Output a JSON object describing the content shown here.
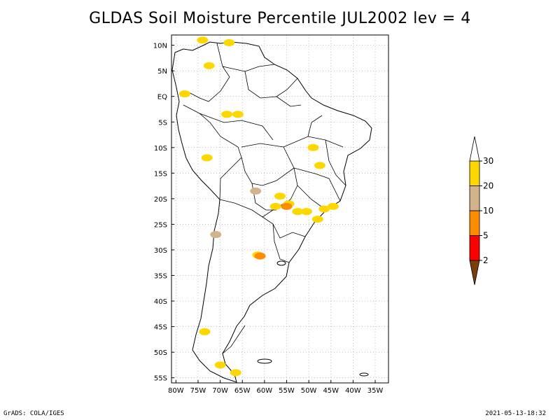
{
  "title": "GLDAS Soil Moisture Percentile JUL2002 lev = 4",
  "footer": {
    "left": "GrADS: COLA/IGES",
    "right": "2021-05-13-18:32"
  },
  "map": {
    "lon_range": [
      -81,
      -32
    ],
    "lat_range": [
      -56,
      12
    ],
    "lon_ticks": [
      {
        "value": -80,
        "label": "80W"
      },
      {
        "value": -75,
        "label": "75W"
      },
      {
        "value": -70,
        "label": "70W"
      },
      {
        "value": -65,
        "label": "65W"
      },
      {
        "value": -60,
        "label": "60W"
      },
      {
        "value": -55,
        "label": "55W"
      },
      {
        "value": -50,
        "label": "50W"
      },
      {
        "value": -45,
        "label": "45W"
      },
      {
        "value": -40,
        "label": "40W"
      },
      {
        "value": -35,
        "label": "35W"
      }
    ],
    "lat_ticks": [
      {
        "value": 10,
        "label": "10N"
      },
      {
        "value": 5,
        "label": "5N"
      },
      {
        "value": 0,
        "label": "EQ"
      },
      {
        "value": -5,
        "label": "5S"
      },
      {
        "value": -10,
        "label": "10S"
      },
      {
        "value": -15,
        "label": "15S"
      },
      {
        "value": -20,
        "label": "20S"
      },
      {
        "value": -25,
        "label": "25S"
      },
      {
        "value": -30,
        "label": "30S"
      },
      {
        "value": -35,
        "label": "35S"
      },
      {
        "value": -40,
        "label": "40S"
      },
      {
        "value": -45,
        "label": "45S"
      },
      {
        "value": -50,
        "label": "50S"
      },
      {
        "value": -55,
        "label": "55S"
      }
    ],
    "grid": true
  },
  "colorbar": {
    "levels": [
      "2",
      "5",
      "10",
      "20",
      "30"
    ],
    "colors": [
      "#7a3d0c",
      "#ff0000",
      "#ff8c00",
      "#d2b48c",
      "#ffd700",
      "#ffffff"
    ]
  },
  "patches": [
    {
      "lon": -56.5,
      "lat": -19.5,
      "color": "#ffd700"
    },
    {
      "lon": -54.5,
      "lat": -21.0,
      "color": "#ffd700"
    },
    {
      "lon": -57.5,
      "lat": -21.5,
      "color": "#ffd700"
    },
    {
      "lon": -50.5,
      "lat": -22.5,
      "color": "#ffd700"
    },
    {
      "lon": -46.5,
      "lat": -22.0,
      "color": "#ffd700"
    },
    {
      "lon": -48.0,
      "lat": -24.0,
      "color": "#ffd700"
    },
    {
      "lon": -44.5,
      "lat": -21.5,
      "color": "#ffd700"
    },
    {
      "lon": -52.5,
      "lat": -22.5,
      "color": "#ffd700"
    },
    {
      "lon": -68.5,
      "lat": -3.5,
      "color": "#ffd700"
    },
    {
      "lon": -66.0,
      "lat": -3.5,
      "color": "#ffd700"
    },
    {
      "lon": -78.0,
      "lat": 0.5,
      "color": "#ffd700"
    },
    {
      "lon": -47.5,
      "lat": -13.5,
      "color": "#ffd700"
    },
    {
      "lon": -61.5,
      "lat": -31.0,
      "color": "#ffd700"
    },
    {
      "lon": -61.0,
      "lat": -31.2,
      "color": "#ff8c00"
    },
    {
      "lon": -71.0,
      "lat": -27.0,
      "color": "#d2b48c"
    },
    {
      "lon": -62.0,
      "lat": -18.5,
      "color": "#d2b48c"
    },
    {
      "lon": -55.0,
      "lat": -21.5,
      "color": "#ff8c00"
    },
    {
      "lon": -74.0,
      "lat": 11.0,
      "color": "#ffd700"
    },
    {
      "lon": -68.0,
      "lat": 10.5,
      "color": "#ffd700"
    },
    {
      "lon": -72.5,
      "lat": 6.0,
      "color": "#ffd700"
    },
    {
      "lon": -73.0,
      "lat": -12.0,
      "color": "#ffd700"
    },
    {
      "lon": -49.0,
      "lat": -10.0,
      "color": "#ffd700"
    },
    {
      "lon": -70.0,
      "lat": -52.5,
      "color": "#ffd700"
    },
    {
      "lon": -73.5,
      "lat": -46.0,
      "color": "#ffd700"
    },
    {
      "lon": -66.5,
      "lat": -54.0,
      "color": "#ffd700"
    }
  ]
}
